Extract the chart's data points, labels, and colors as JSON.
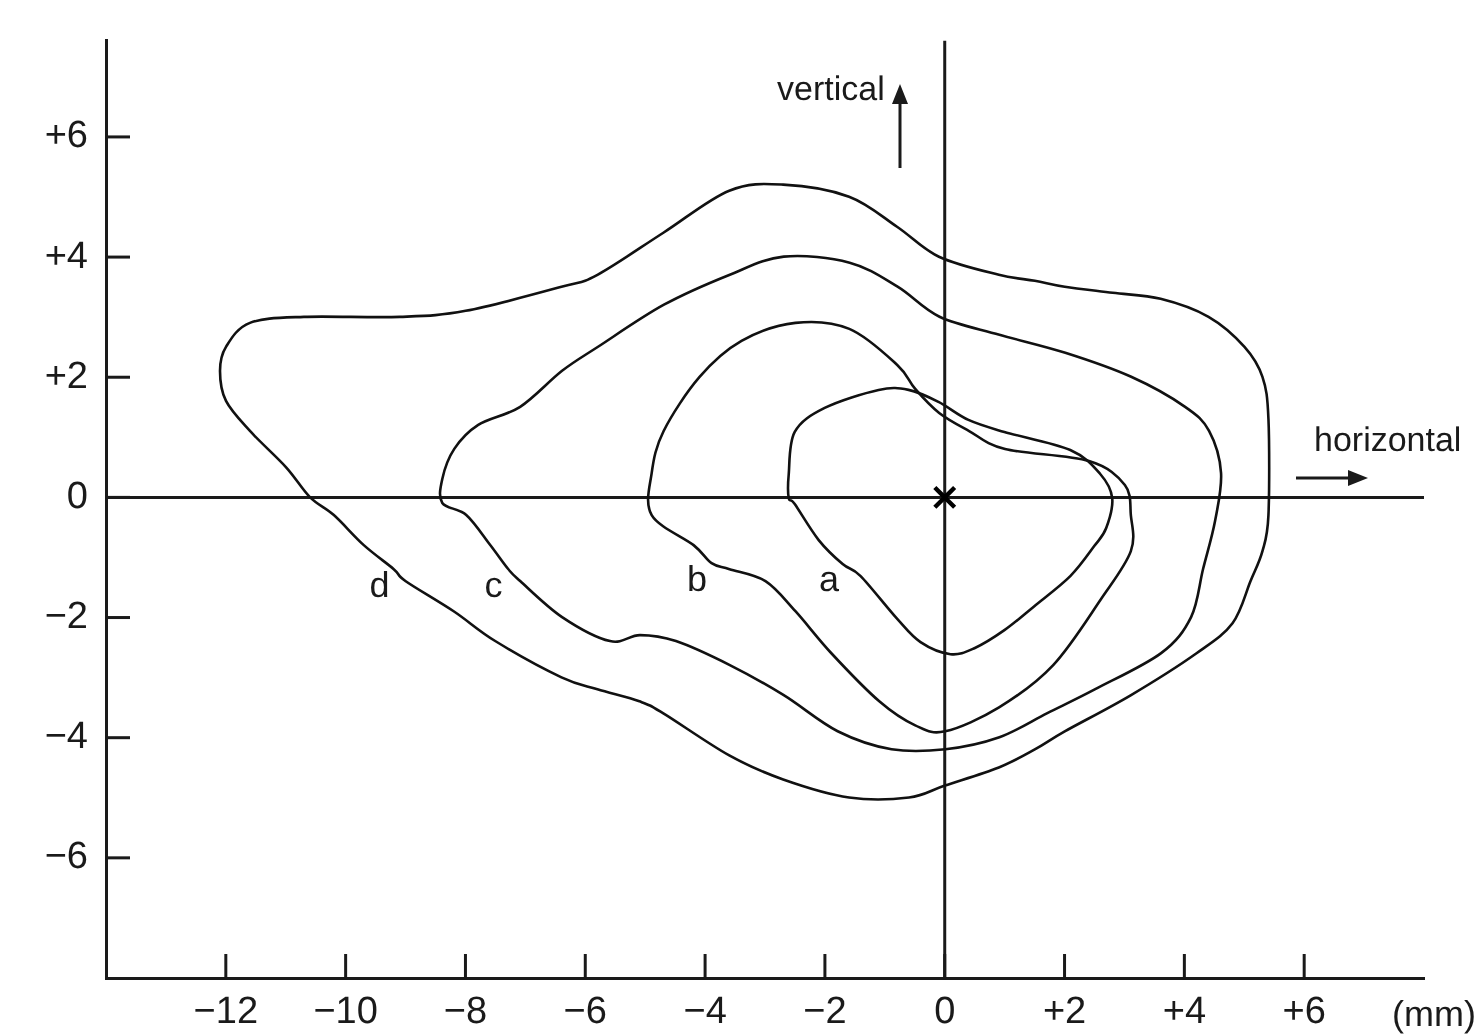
{
  "chart_data": {
    "type": "scatter",
    "xlabel": "(mm)",
    "xlim": [
      -14,
      8
    ],
    "ylim": [
      -8,
      7.6
    ],
    "xticks": [
      {
        "value": -12,
        "label": "−12"
      },
      {
        "value": -10,
        "label": "−10"
      },
      {
        "value": -8,
        "label": "−8"
      },
      {
        "value": -6,
        "label": "−6"
      },
      {
        "value": -4,
        "label": "−4"
      },
      {
        "value": -2,
        "label": "−2"
      },
      0,
      {
        "value": 2,
        "label": "+2"
      },
      {
        "value": 4,
        "label": "+4"
      },
      {
        "value": 6,
        "label": "+6"
      }
    ],
    "yticks": [
      {
        "value": -6,
        "label": "−6"
      },
      {
        "value": -4,
        "label": "−4"
      },
      {
        "value": -2,
        "label": "−2"
      },
      0,
      {
        "value": 2,
        "label": "+2"
      },
      {
        "value": 4,
        "label": "+4"
      },
      {
        "value": 6,
        "label": "+6"
      }
    ],
    "marker": "cross",
    "color": "#000000",
    "x": [
      0
    ],
    "values": [
      0
    ],
    "annotations": [
      "a",
      "b",
      "c",
      "d"
    ],
    "ref_lines": [
      {
        "axis": "x",
        "value": 0,
        "label": "vertical"
      },
      {
        "axis": "y",
        "value": 0,
        "label": "horizontal"
      }
    ]
  }
}
